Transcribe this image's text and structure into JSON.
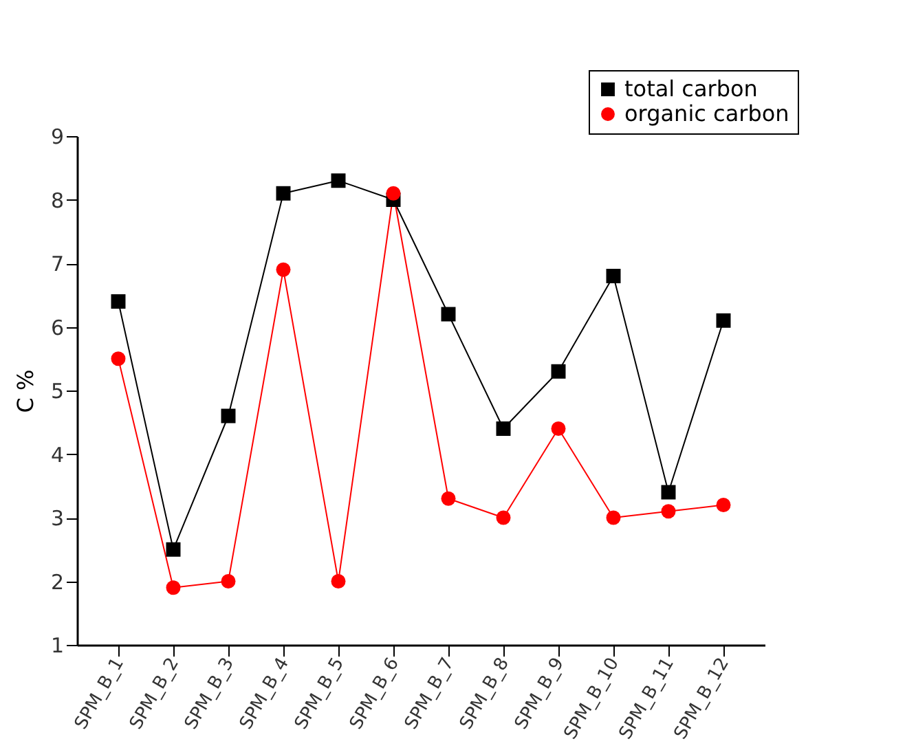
{
  "chart_data": {
    "type": "line",
    "ylabel": "C %",
    "categories": [
      "SPM_B_1",
      "SPM_B_2",
      "SPM_B_3",
      "SPM_B_4",
      "SPM_B_5",
      "SPM_B_6",
      "SPM_B_7",
      "SPM_B_8",
      "SPM_B_9",
      "SPM_B_10",
      "SPM_B_11",
      "SPM_B_12"
    ],
    "series": [
      {
        "name": "total carbon",
        "color": "#000000",
        "marker": "square",
        "values": [
          6.4,
          2.5,
          4.6,
          8.1,
          8.3,
          8.0,
          6.2,
          4.4,
          5.3,
          6.8,
          3.4,
          6.1
        ]
      },
      {
        "name": "organic carbon",
        "color": "#ff0000",
        "marker": "circle",
        "values": [
          5.5,
          1.9,
          2.0,
          6.9,
          2.0,
          8.1,
          3.3,
          3.0,
          4.4,
          3.0,
          3.1,
          3.2
        ]
      }
    ],
    "ylim": [
      1,
      9
    ],
    "yticks": [
      1,
      2,
      3,
      4,
      5,
      6,
      7,
      8,
      9
    ],
    "grid": false,
    "legend": "top right",
    "line_style": "solid"
  }
}
